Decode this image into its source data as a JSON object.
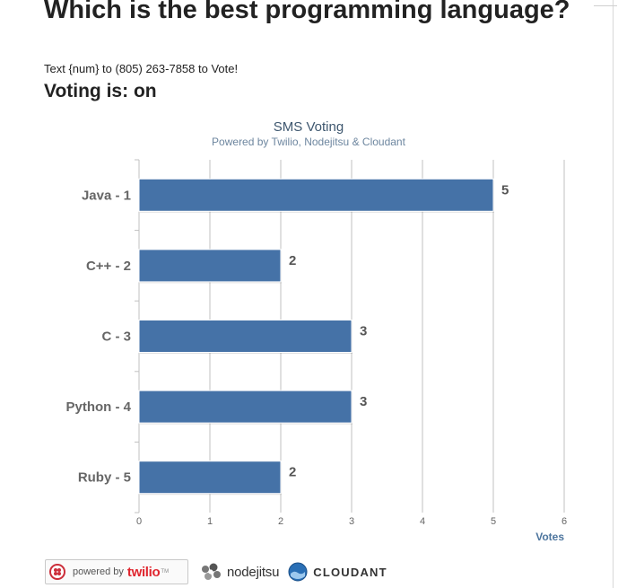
{
  "header": {
    "title": "Which is the best programming language?",
    "subtitle": "Text {num} to (805) 263-7858 to Vote!",
    "voting_label": "Voting is:",
    "voting_value": "on"
  },
  "chart_data": {
    "type": "bar",
    "orientation": "horizontal",
    "title": "SMS Voting",
    "subtitle": "Powered by Twilio, Nodejitsu & Cloudant",
    "categories": [
      "Java - 1",
      "C++ - 2",
      "C - 3",
      "Python - 4",
      "Ruby - 5"
    ],
    "values": [
      5,
      2,
      3,
      3,
      2
    ],
    "xlabel": "Votes",
    "xlim": [
      0,
      6
    ],
    "xticks": [
      0,
      1,
      2,
      3,
      4,
      5,
      6
    ],
    "grid": true,
    "data_labels": true,
    "legend": "none",
    "colors": {
      "bar": "#4572a7",
      "title": "#3e576f",
      "subtitle": "#6d869f",
      "axis_label": "#4d759e",
      "category_label": "#666666",
      "value_label": "#555555",
      "grid": "#c0c0c0"
    }
  },
  "footer": {
    "twilio_prefix": "powered by",
    "twilio_word": "twilio",
    "twilio_tm": "TM",
    "nodejitsu_word": "nodejitsu",
    "cloudant_word": "CLOUDANT",
    "icons": [
      "twilio-logo-icon",
      "nodejitsu-logo-icon",
      "cloudant-logo-icon"
    ]
  }
}
